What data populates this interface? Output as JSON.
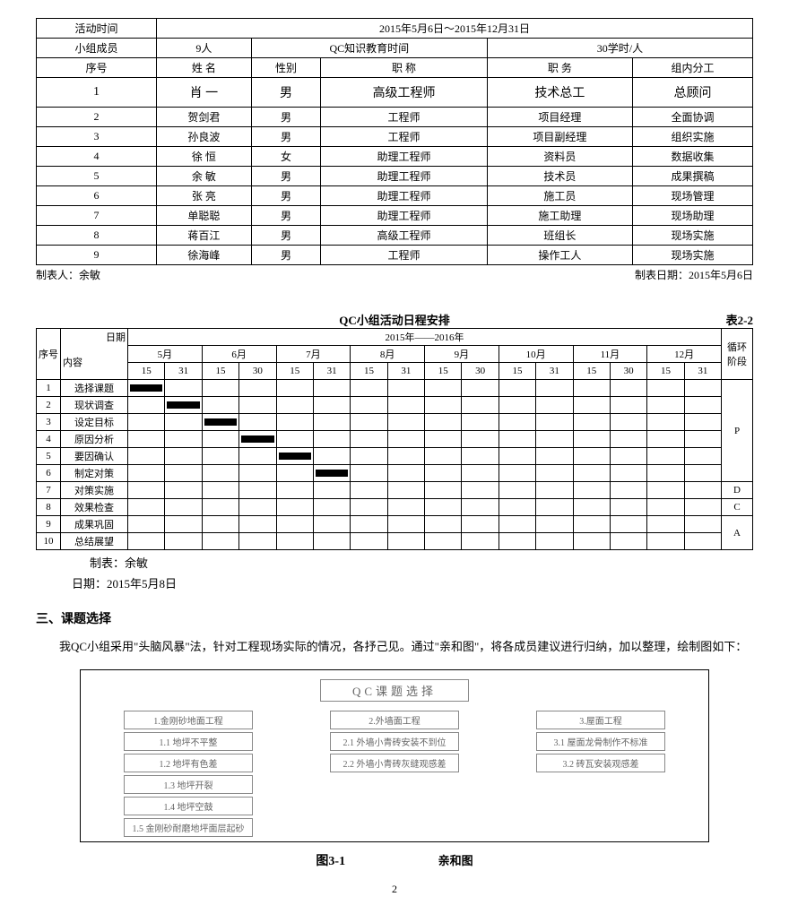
{
  "table1": {
    "r1": {
      "c1": "活动时间",
      "c2": "2015年5月6日～2015年12月31日"
    },
    "r2": {
      "c1": "小组成员",
      "c2": "9人",
      "c3": "QC知识教育时间",
      "c4": "30学时/人"
    },
    "head": {
      "c1": "序号",
      "c2": "姓  名",
      "c3": "性别",
      "c4": "职   称",
      "c5": "职  务",
      "c6": "组内分工"
    },
    "rows": [
      {
        "n": "1",
        "name": "肖   一",
        "sex": "男",
        "title": "高级工程师",
        "job": "技术总工",
        "role": "总顾问"
      },
      {
        "n": "2",
        "name": "贺剑君",
        "sex": "男",
        "title": "工程师",
        "job": "项目经理",
        "role": "全面协调"
      },
      {
        "n": "3",
        "name": "孙良波",
        "sex": "男",
        "title": "工程师",
        "job": "项目副经理",
        "role": "组织实施"
      },
      {
        "n": "4",
        "name": "徐   恒",
        "sex": "女",
        "title": "助理工程师",
        "job": "资料员",
        "role": "数据收集"
      },
      {
        "n": "5",
        "name": "余   敏",
        "sex": "男",
        "title": "助理工程师",
        "job": "技术员",
        "role": "成果撰稿"
      },
      {
        "n": "6",
        "name": "张   亮",
        "sex": "男",
        "title": "助理工程师",
        "job": "施工员",
        "role": "现场管理"
      },
      {
        "n": "7",
        "name": "单聪聪",
        "sex": "男",
        "title": "助理工程师",
        "job": "施工助理",
        "role": "现场助理"
      },
      {
        "n": "8",
        "name": "蒋百江",
        "sex": "男",
        "title": "高级工程师",
        "job": "班组长",
        "role": "现场实施"
      },
      {
        "n": "9",
        "name": "徐海峰",
        "sex": "男",
        "title": "工程师",
        "job": "操作工人",
        "role": "现场实施"
      }
    ],
    "footer_left": "制表人：余敏",
    "footer_right": "制表日期：2015年5月6日"
  },
  "gantt": {
    "title": "QC小组活动日程安排",
    "table_no": "表2-2",
    "header": {
      "seq": "序号",
      "date": "日期",
      "content": "内容",
      "year": "2015年——2016年",
      "phase": "循环阶段"
    },
    "months": [
      "5月",
      "6月",
      "7月",
      "8月",
      "9月",
      "10月",
      "11月",
      "12月"
    ],
    "subcols": [
      "15",
      "31",
      "15",
      "30",
      "15",
      "31",
      "15",
      "31",
      "15",
      "30",
      "15",
      "31",
      "15",
      "30",
      "15",
      "31"
    ],
    "rows": [
      {
        "n": "1",
        "name": "选择课题",
        "bars": [
          1,
          0,
          0,
          0,
          0,
          0,
          0,
          0,
          0,
          0,
          0,
          0,
          0,
          0,
          0,
          0
        ]
      },
      {
        "n": "2",
        "name": "现状调查",
        "bars": [
          0,
          1,
          0,
          0,
          0,
          0,
          0,
          0,
          0,
          0,
          0,
          0,
          0,
          0,
          0,
          0
        ]
      },
      {
        "n": "3",
        "name": "设定目标",
        "bars": [
          0,
          0,
          1,
          0,
          0,
          0,
          0,
          0,
          0,
          0,
          0,
          0,
          0,
          0,
          0,
          0
        ]
      },
      {
        "n": "4",
        "name": "原因分析",
        "bars": [
          0,
          0,
          0,
          1,
          0,
          0,
          0,
          0,
          0,
          0,
          0,
          0,
          0,
          0,
          0,
          0
        ]
      },
      {
        "n": "5",
        "name": "要因确认",
        "bars": [
          0,
          0,
          0,
          0,
          1,
          0,
          0,
          0,
          0,
          0,
          0,
          0,
          0,
          0,
          0,
          0
        ]
      },
      {
        "n": "6",
        "name": "制定对策",
        "bars": [
          0,
          0,
          0,
          0,
          0,
          1,
          0,
          0,
          0,
          0,
          0,
          0,
          0,
          0,
          0,
          0
        ]
      },
      {
        "n": "7",
        "name": "对策实施",
        "bars": [
          0,
          0,
          0,
          0,
          0,
          0,
          0,
          0,
          0,
          0,
          0,
          0,
          0,
          0,
          0,
          0
        ]
      },
      {
        "n": "8",
        "name": "效果检查",
        "bars": [
          0,
          0,
          0,
          0,
          0,
          0,
          0,
          0,
          0,
          0,
          0,
          0,
          0,
          0,
          0,
          0
        ]
      },
      {
        "n": "9",
        "name": "成果巩固",
        "bars": [
          0,
          0,
          0,
          0,
          0,
          0,
          0,
          0,
          0,
          0,
          0,
          0,
          0,
          0,
          0,
          0
        ]
      },
      {
        "n": "10",
        "name": "总结展望",
        "bars": [
          0,
          0,
          0,
          0,
          0,
          0,
          0,
          0,
          0,
          0,
          0,
          0,
          0,
          0,
          0,
          0
        ]
      }
    ],
    "phases": [
      {
        "label": "P",
        "span": 6
      },
      {
        "label": "D",
        "span": 1
      },
      {
        "label": "C",
        "span": 1
      },
      {
        "label": "A",
        "span": 2
      }
    ],
    "footer1": "制表：余敏",
    "footer2": "日期：2015年5月8日"
  },
  "section": {
    "title": "三、课题选择",
    "para": "我QC小组采用\"头脑风暴\"法，针对工程现场实际的情况，各抒己见。通过\"亲和图\"，将各成员建议进行归纳，加以整理，绘制图如下："
  },
  "diagram": {
    "title": "QC课题选择",
    "col1_head": "1.金刚砂地面工程",
    "col1": [
      "1.1 地坪不平整",
      "1.2 地坪有色差",
      "1.3 地坪开裂",
      "1.4 地坪空鼓",
      "1.5 金刚砂耐磨地坪面层起砂"
    ],
    "col2_head": "2.外墙面工程",
    "col2": [
      "2.1 外墙小青砖安装不到位",
      "2.2 外墙小青砖灰缝观感差"
    ],
    "col3_head": "3.屋面工程",
    "col3": [
      "3.1 屋面龙骨制作不标准",
      "3.2 砖瓦安装观感差"
    ],
    "caption": "图3-1",
    "caption_sub": "亲和图"
  },
  "page": "2"
}
